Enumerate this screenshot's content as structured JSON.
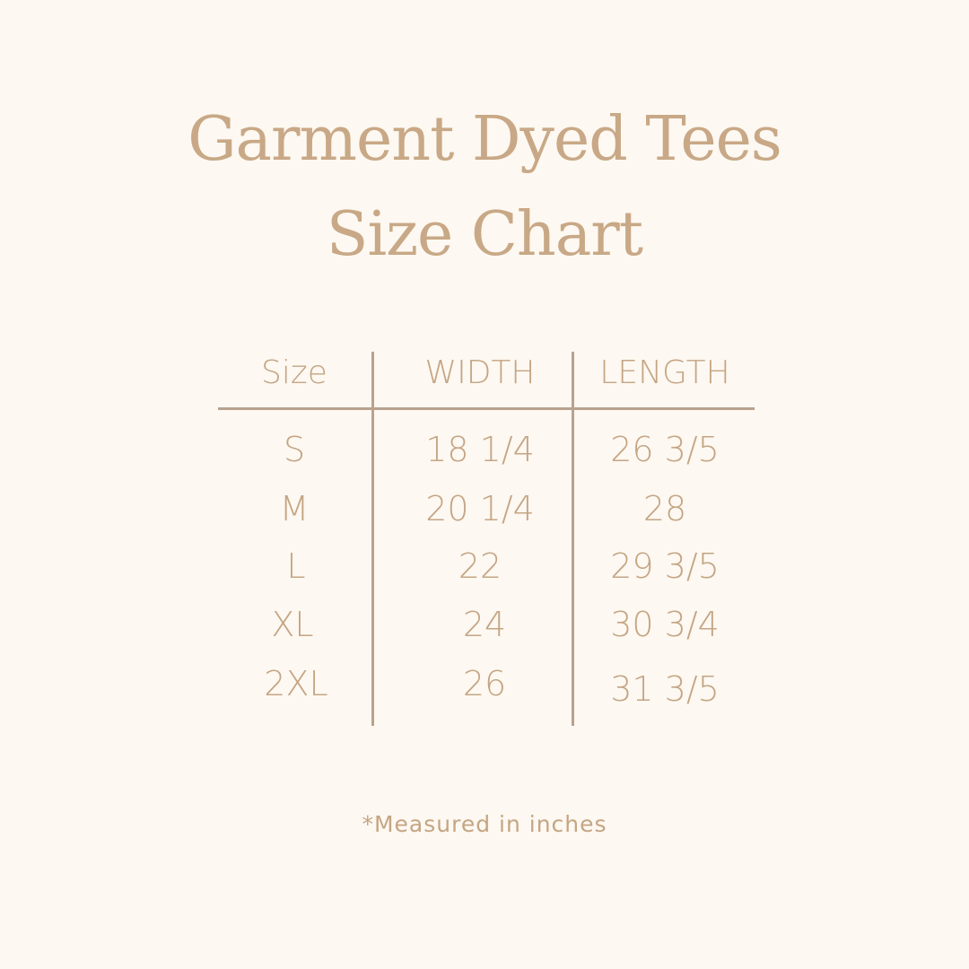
{
  "title": {
    "line1": "Garment Dyed Tees",
    "line2": "Size Chart"
  },
  "colors": {
    "background": "#fdf8f1",
    "text": "#c4a584",
    "lines": "#b9a28f"
  },
  "table": {
    "headers": [
      "Size",
      "WIDTH",
      "LENGTH"
    ],
    "rows": [
      [
        "S",
        "18 1/4",
        "26 3/5"
      ],
      [
        "M",
        "20 1/4",
        "28"
      ],
      [
        "L",
        "22",
        "29 3/5"
      ],
      [
        "XL",
        "24",
        "30 3/4"
      ],
      [
        "2XL",
        "26",
        "31 3/5"
      ]
    ]
  },
  "note": "*Measured in inches"
}
